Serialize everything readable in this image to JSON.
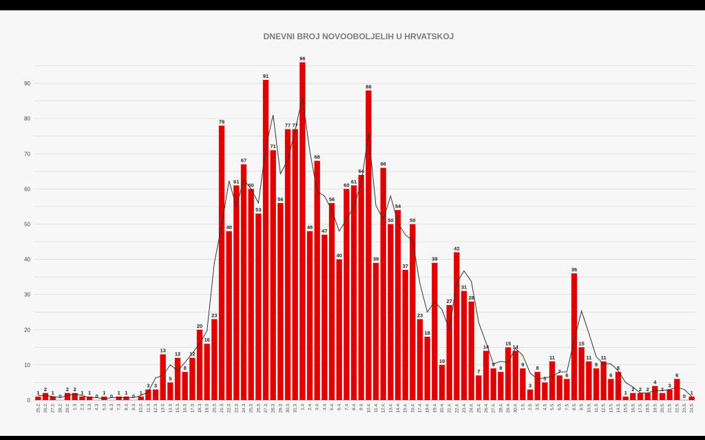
{
  "chart_data": {
    "type": "bar",
    "title": "DNEVNI BROJ NOVOOBOLJELIH U HRVATSKOJ",
    "xlabel": "",
    "ylabel": "",
    "ylim": [
      0,
      100
    ],
    "yticks": [
      0,
      10,
      20,
      30,
      40,
      50,
      60,
      70,
      80,
      90
    ],
    "grid": true,
    "colors": {
      "bar": "#e00000",
      "line": "#333333",
      "grid": "#d9d9d9"
    },
    "categories": [
      "25.2.",
      "26.2.",
      "27.2.",
      "28.2.",
      "29.2.",
      "1.3.",
      "2.3.",
      "3.3.",
      "4.3.",
      "5.3.",
      "6.3.",
      "7.3.",
      "8.3.",
      "9.3.",
      "10.3.",
      "11.3.",
      "12.3.",
      "13.3.",
      "14.3.",
      "15.3.",
      "16.3.",
      "17.3.",
      "18.3.",
      "19.3.",
      "20.3.",
      "21.3.",
      "22.3.",
      "23.3.",
      "24.3.",
      "25.3.",
      "26.3.",
      "27.3.",
      "28.3.",
      "29.3.",
      "30.3.",
      "31.3.",
      "1.4.",
      "2.4.",
      "3.4.",
      "4.4.",
      "5.4.",
      "6.4.",
      "7.4.",
      "8.4.",
      "9.4.",
      "10.4.",
      "11.4.",
      "12.4.",
      "13.4.",
      "14.4.",
      "15.4.",
      "16.4.",
      "17.4.",
      "18.4.",
      "19.4.",
      "20.4.",
      "21.4.",
      "22.4.",
      "23.4.",
      "24.4.",
      "25.4.",
      "26.4.",
      "27.4.",
      "28.4.",
      "29.4.",
      "30.4.",
      "1.5.",
      "2.5.",
      "3.5.",
      "4.5.",
      "5.5.",
      "6.5.",
      "7.5.",
      "8.5.",
      "9.5.",
      "10.5.",
      "11.5.",
      "12.5.",
      "13.5.",
      "14.5.",
      "15.5.",
      "16.5.",
      "17.5.",
      "18.5.",
      "19.5.",
      "20.5.",
      "21.5.",
      "22.5.",
      "23.5.",
      "24.5."
    ],
    "series": [
      {
        "type": "bar",
        "values": [
          1,
          2,
          1,
          0,
          2,
          2,
          1,
          1,
          0,
          1,
          0,
          1,
          1,
          0,
          1,
          3,
          3,
          13,
          5,
          12,
          8,
          12,
          20,
          16,
          23,
          78,
          48,
          61,
          67,
          60,
          53,
          91,
          71,
          56,
          77,
          77,
          96,
          48,
          68,
          47,
          56,
          40,
          60,
          61,
          64,
          88,
          39,
          66,
          50,
          54,
          37,
          50,
          23,
          18,
          39,
          10,
          27,
          42,
          31,
          28,
          7,
          14,
          9,
          8,
          15,
          14,
          9,
          3,
          8,
          5,
          11,
          7,
          6,
          36,
          15,
          11,
          9,
          11,
          6,
          8,
          1,
          2,
          2,
          2,
          4,
          2,
          3,
          6,
          0,
          1
        ]
      },
      {
        "type": "line",
        "values": [
          1.3,
          1.3,
          1.0,
          0.7,
          1.3,
          1.7,
          1.3,
          0.7,
          0.7,
          0.3,
          0.7,
          0.7,
          0.7,
          0.7,
          1.3,
          2.3,
          6.3,
          7.0,
          10.0,
          8.3,
          10.7,
          13.3,
          16.0,
          19.7,
          39.0,
          49.7,
          62.3,
          55.0,
          62.7,
          60.0,
          56.0,
          71.7,
          81.0,
          64.3,
          68.3,
          76.7,
          86.0,
          70.7,
          59.3,
          58.0,
          54.0,
          48.0,
          51.3,
          55.0,
          61.7,
          75.7,
          55.3,
          51.3,
          58.0,
          50.3,
          47.0,
          45.3,
          33.0,
          25.0,
          28.0,
          25.7,
          20.0,
          33.3,
          36.7,
          33.7,
          22.0,
          16.3,
          10.3,
          11.0,
          10.7,
          14.7,
          12.7,
          7.7,
          6.0,
          6.3,
          6.7,
          8.0,
          8.0,
          17.0,
          25.3,
          19.0,
          12.3,
          10.3,
          10.3,
          8.3,
          5.0,
          3.7,
          2.0,
          2.0,
          2.7,
          2.7,
          3.0,
          3.7,
          3.0,
          1.0
        ]
      }
    ]
  }
}
